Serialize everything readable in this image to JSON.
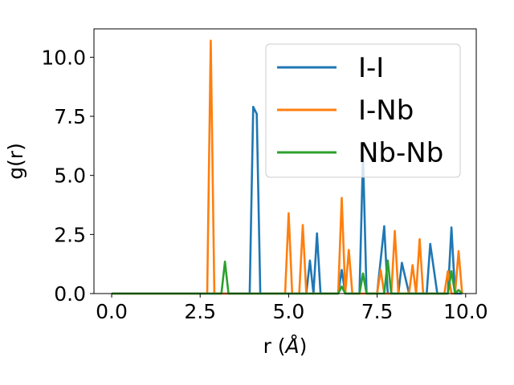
{
  "chart_data": {
    "type": "line",
    "xlabel": "r (",
    "xlabel_unit": "Å",
    "xlabel_close": ")",
    "ylabel": "g(r)",
    "xlim": [
      -0.5,
      10.3
    ],
    "ylim": [
      0,
      11.2
    ],
    "xticks": [
      0.0,
      2.5,
      5.0,
      7.5,
      10.0
    ],
    "xtick_labels": [
      "0.0",
      "2.5",
      "5.0",
      "7.5",
      "10.0"
    ],
    "yticks": [
      0.0,
      2.5,
      5.0,
      7.5,
      10.0
    ],
    "ytick_labels": [
      "0.0",
      "2.5",
      "5.0",
      "7.5",
      "10.0"
    ],
    "grid": false,
    "legend_position": "top-right",
    "series": [
      {
        "name": "I-I",
        "color": "#1f77b4",
        "x": [
          0.0,
          3.9,
          4.0,
          4.1,
          4.2,
          5.5,
          5.6,
          5.7,
          5.8,
          5.9,
          6.4,
          6.5,
          6.6,
          7.0,
          7.1,
          7.2,
          7.5,
          7.7,
          7.8,
          8.1,
          8.2,
          8.4,
          8.9,
          9.0,
          9.2,
          9.4,
          9.5,
          9.6,
          9.7,
          9.8,
          9.9
        ],
        "y": [
          0.0,
          0.0,
          7.9,
          7.6,
          0.0,
          0.0,
          1.4,
          0.0,
          2.55,
          0.0,
          0.0,
          1.0,
          0.0,
          0.0,
          5.9,
          0.0,
          0.0,
          2.85,
          0.0,
          0.0,
          1.3,
          0.0,
          0.0,
          2.1,
          0.0,
          0.0,
          0.0,
          2.8,
          0.0,
          0.0,
          0.0
        ]
      },
      {
        "name": "I-Nb",
        "color": "#ff7f0e",
        "x": [
          0.0,
          2.7,
          2.8,
          2.9,
          4.9,
          5.0,
          5.1,
          5.3,
          5.4,
          5.5,
          6.4,
          6.5,
          6.6,
          6.7,
          6.8,
          6.9,
          7.5,
          7.6,
          7.7,
          7.9,
          8.0,
          8.1,
          8.4,
          8.5,
          8.6,
          8.7,
          8.8,
          9.4,
          9.5,
          9.6,
          9.7,
          9.8,
          9.9
        ],
        "y": [
          0.0,
          0.0,
          10.7,
          0.0,
          0.0,
          3.4,
          0.0,
          0.0,
          2.9,
          0.0,
          0.0,
          4.05,
          0.0,
          1.85,
          0.0,
          0.0,
          0.0,
          1.0,
          0.0,
          0.0,
          2.65,
          0.0,
          0.0,
          1.2,
          0.0,
          2.3,
          0.0,
          0.0,
          0.95,
          0.0,
          0.0,
          1.8,
          0.0
        ]
      },
      {
        "name": "Nb-Nb",
        "color": "#2ca02c",
        "x": [
          0.0,
          3.1,
          3.2,
          3.3,
          6.4,
          6.5,
          6.6,
          7.0,
          7.1,
          7.2,
          7.7,
          7.8,
          7.9,
          9.5,
          9.6,
          9.7,
          9.8,
          9.9
        ],
        "y": [
          0.0,
          0.0,
          1.35,
          0.0,
          0.0,
          0.3,
          0.0,
          0.0,
          0.85,
          0.0,
          0.0,
          1.4,
          0.0,
          0.0,
          0.95,
          0.0,
          0.15,
          0.0
        ]
      }
    ]
  }
}
